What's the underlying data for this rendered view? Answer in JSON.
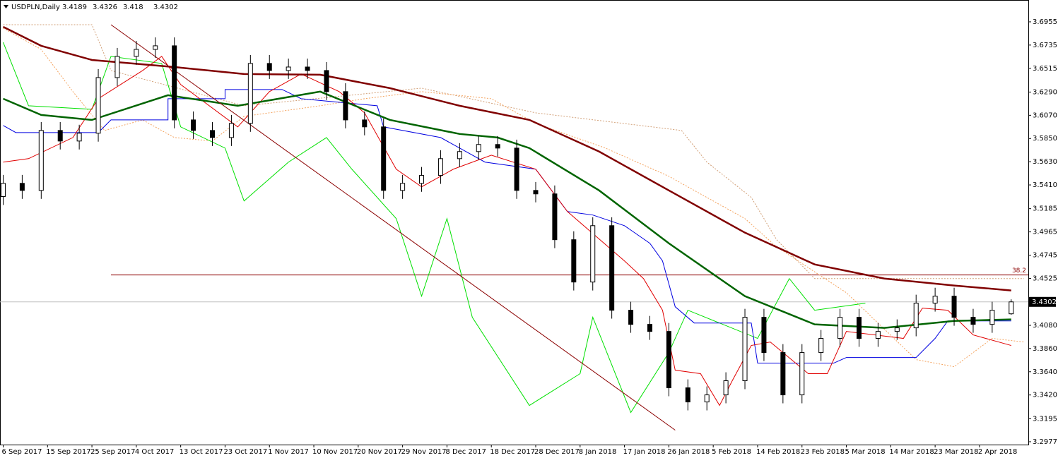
{
  "chart_data": {
    "type": "candlestick",
    "symbol": "USDPLN,Daily",
    "x": [
      0,
      3,
      6,
      9,
      12,
      15,
      18,
      21,
      24,
      27,
      30,
      33,
      36,
      39,
      42,
      45,
      48,
      51,
      54,
      57,
      60,
      63,
      66,
      69,
      72,
      75,
      78,
      81,
      84,
      87,
      90,
      93,
      96,
      99,
      102,
      105,
      108,
      111,
      114,
      117,
      120,
      123,
      126,
      129,
      132,
      135,
      138,
      141,
      144,
      147,
      150,
      153,
      156,
      159
    ],
    "open": [
      3.53,
      3.5425,
      3.5358,
      3.5926,
      3.5826,
      3.59,
      3.6427,
      3.6628,
      3.6694,
      3.6728,
      3.6026,
      3.5926,
      3.5859,
      3.5993,
      3.6561,
      3.6494,
      3.6527,
      3.6494,
      3.6294,
      3.6026,
      3.596,
      3.5358,
      3.5425,
      3.55,
      3.5659,
      3.5726,
      3.5793,
      3.5759,
      3.5358,
      3.5325,
      3.4891,
      3.449,
      3.5024,
      3.4223,
      3.4089,
      3.4022,
      3.3488,
      3.3354,
      3.3421,
      3.3555,
      3.4156,
      3.3822,
      3.3421,
      3.3822,
      3.3956,
      3.4156,
      3.3956,
      3.4022,
      3.4056,
      3.429,
      3.4356,
      3.4156,
      3.4089,
      3.4189
    ],
    "high": [
      3.5505,
      3.5505,
      3.6006,
      3.6006,
      3.598,
      3.6507,
      3.6708,
      3.6774,
      3.6808,
      3.6808,
      3.6106,
      3.6006,
      3.6073,
      3.6641,
      3.6641,
      3.6607,
      3.6607,
      3.6574,
      3.6374,
      3.6106,
      3.604,
      3.5505,
      3.558,
      3.5739,
      3.5806,
      3.5873,
      3.5873,
      3.5839,
      3.5438,
      3.5405,
      3.4971,
      3.5104,
      3.5104,
      3.4303,
      3.4169,
      3.4102,
      3.3568,
      3.3501,
      3.3635,
      3.4236,
      3.4236,
      3.3902,
      3.3902,
      3.4036,
      3.4236,
      3.4236,
      3.4102,
      3.4136,
      3.437,
      3.4436,
      3.4436,
      3.4236,
      3.4303,
      3.4326
    ],
    "low": [
      3.522,
      3.5278,
      3.5278,
      3.5746,
      3.5746,
      3.582,
      3.6347,
      3.6548,
      3.6614,
      3.5946,
      3.5846,
      3.5779,
      3.5779,
      3.5913,
      3.6414,
      3.6414,
      3.6414,
      3.6214,
      3.5946,
      3.588,
      3.5278,
      3.5278,
      3.5345,
      3.542,
      3.5579,
      3.5646,
      3.5679,
      3.5278,
      3.5245,
      3.4811,
      3.441,
      3.441,
      3.4143,
      3.4009,
      3.3942,
      3.3408,
      3.3274,
      3.3274,
      3.3341,
      3.3475,
      3.3742,
      3.3341,
      3.3341,
      3.3742,
      3.3876,
      3.3876,
      3.3876,
      3.3942,
      3.3976,
      3.421,
      3.4076,
      3.4009,
      3.4009,
      3.418
    ],
    "close": [
      3.5425,
      3.5358,
      3.5926,
      3.5826,
      3.59,
      3.6427,
      3.6628,
      3.6694,
      3.6728,
      3.6026,
      3.5926,
      3.5859,
      3.5993,
      3.6561,
      3.6494,
      3.6527,
      3.6494,
      3.6294,
      3.6026,
      3.596,
      3.5358,
      3.5425,
      3.55,
      3.5659,
      3.5726,
      3.5793,
      3.5759,
      3.5358,
      3.5325,
      3.4891,
      3.449,
      3.5024,
      3.4223,
      3.4089,
      3.4022,
      3.3488,
      3.3354,
      3.3421,
      3.3555,
      3.4156,
      3.3822,
      3.3421,
      3.3822,
      3.3956,
      3.4156,
      3.3956,
      3.4022,
      3.4056,
      3.429,
      3.4356,
      3.4156,
      3.4089,
      3.4223,
      3.4302
    ],
    "lines": [
      {
        "color": "#d2a078",
        "width": 1,
        "dash": true,
        "x": [
          0,
          14,
          17,
          38,
          66,
          84,
          107,
          111,
          118,
          122,
          128,
          161
        ],
        "values": [
          3.6928,
          3.6928,
          3.6494,
          3.616,
          3.6327,
          3.6093,
          3.5926,
          3.5626,
          3.5292,
          3.4891,
          3.4523,
          3.4523
        ]
      },
      {
        "color": "#f4a460",
        "width": 1,
        "dash": true,
        "x": [
          0,
          6,
          11,
          16,
          22,
          27,
          33,
          38,
          50,
          57,
          66,
          77,
          84,
          95,
          105,
          117,
          122,
          133,
          144,
          150,
          156,
          161
        ],
        "values": [
          3.6895,
          3.6694,
          3.6294,
          3.5926,
          3.6026,
          3.5859,
          3.5826,
          3.606,
          3.616,
          3.6227,
          3.6294,
          3.6227,
          3.5993,
          3.5759,
          3.5492,
          3.5091,
          3.4824,
          3.4389,
          3.3755,
          3.3688,
          3.3956,
          3.3922
        ]
      },
      {
        "color": "#00e000",
        "width": 1,
        "dash": false,
        "x": [
          0,
          4,
          14,
          17,
          25,
          28,
          35,
          38,
          45,
          51,
          55,
          62,
          66,
          70,
          74,
          83,
          91,
          93,
          99,
          105,
          108,
          119,
          124,
          128,
          136
        ],
        "values": [
          3.6761,
          3.616,
          3.6127,
          3.6628,
          3.6561,
          3.596,
          3.5759,
          3.5258,
          3.5626,
          3.5859,
          3.5559,
          3.5091,
          3.4356,
          3.5091,
          3.4156,
          3.3321,
          3.3622,
          3.4156,
          3.3254,
          3.3822,
          3.4223,
          3.3956,
          3.4523,
          3.4223,
          3.429
        ]
      },
      {
        "color": "#0000e0",
        "width": 1,
        "dash": false,
        "x": [
          0,
          2,
          15,
          17,
          26,
          26,
          35,
          35,
          44,
          47,
          59,
          60,
          69,
          72,
          76,
          84,
          89,
          93,
          98,
          102,
          104,
          106,
          109,
          118,
          119,
          131,
          133,
          144,
          147,
          149,
          159
        ],
        "values": [
          3.5973,
          3.5906,
          3.5906,
          3.6026,
          3.6026,
          3.6227,
          3.6227,
          3.6314,
          3.6314,
          3.6227,
          3.616,
          3.596,
          3.5859,
          3.5759,
          3.5626,
          3.5559,
          3.5158,
          3.5125,
          3.5024,
          3.4857,
          3.469,
          3.4256,
          3.4102,
          3.4102,
          3.3722,
          3.3722,
          3.3775,
          3.3775,
          3.3956,
          3.4122,
          3.4122
        ]
      },
      {
        "color": "#e00000",
        "width": 1,
        "dash": false,
        "x": [
          0,
          4,
          11,
          15,
          22,
          25,
          28,
          37,
          42,
          47,
          53,
          57,
          62,
          66,
          71,
          77,
          84,
          89,
          98,
          101,
          104,
          106,
          110,
          113,
          115,
          118,
          121,
          127,
          130,
          133,
          142,
          145,
          149,
          153,
          159
        ],
        "values": [
          3.5626,
          3.5659,
          3.5859,
          3.6227,
          3.6494,
          3.6628,
          3.6361,
          3.596,
          3.6294,
          3.6461,
          3.6294,
          3.6093,
          3.5559,
          3.5392,
          3.5559,
          3.5692,
          3.5559,
          3.5158,
          3.469,
          3.4523,
          3.4223,
          3.3655,
          3.3622,
          3.3321,
          3.3555,
          3.3889,
          3.3922,
          3.3622,
          3.3622,
          3.4022,
          3.3956,
          3.4243,
          3.4223,
          3.3989,
          3.3889
        ]
      },
      {
        "color": "#006400",
        "width": 2.5,
        "dash": false,
        "x": [
          0,
          6,
          14,
          26,
          37,
          50,
          61,
          72,
          78,
          83,
          94,
          105,
          117,
          128,
          139,
          150,
          159
        ],
        "values": [
          3.6227,
          3.6073,
          3.6026,
          3.626,
          3.616,
          3.6294,
          3.6026,
          3.5893,
          3.5859,
          3.5759,
          3.5358,
          3.4857,
          3.4356,
          3.4089,
          3.4056,
          3.4122,
          3.4136
        ]
      },
      {
        "color": "#800000",
        "width": 2.5,
        "dash": false,
        "x": [
          0,
          6,
          14,
          27,
          38,
          50,
          61,
          72,
          83,
          94,
          105,
          117,
          128,
          139,
          150,
          159
        ],
        "values": [
          3.6908,
          3.6728,
          3.6594,
          3.6527,
          3.6461,
          3.6454,
          3.6327,
          3.616,
          3.6026,
          3.5726,
          3.5358,
          3.4958,
          3.4657,
          3.4523,
          3.4457,
          3.441
        ]
      }
    ],
    "trendline": {
      "color": "#8b0000",
      "x": [
        17,
        106
      ],
      "values": [
        3.6928,
        3.3087
      ]
    },
    "fib": {
      "label": "38.2",
      "value": 3.4557,
      "x_start": 17,
      "color": "#8b0000"
    },
    "xlim": [
      -0.5,
      161.7
    ],
    "ylim": [
      3.295,
      3.7162
    ],
    "yticks": [
      3.6955,
      3.6735,
      3.6515,
      {
        "value": 3.629,
        "label": "3.6290"
      },
      {
        "value": 3.607,
        "label": "3.6070"
      },
      {
        "value": 3.585,
        "label": "3.5850"
      },
      {
        "value": 3.563,
        "label": "3.5630"
      },
      {
        "value": 3.541,
        "label": "3.5410"
      },
      3.5185,
      3.4965,
      3.4745,
      3.4525,
      {
        "value": 3.408,
        "label": "3.4080"
      },
      {
        "value": 3.386,
        "label": "3.3860"
      },
      {
        "value": 3.364,
        "label": "3.3640"
      },
      {
        "value": 3.342,
        "label": "3.3420"
      },
      3.3195,
      3.2977
    ],
    "xticks": [
      {
        "value": 0,
        "label": "6 Sep 2017"
      },
      {
        "value": 7,
        "label": "15 Sep 2017"
      },
      {
        "value": 14,
        "label": "25 Sep 2017"
      },
      {
        "value": 21,
        "label": "4 Oct 2017"
      },
      {
        "value": 28,
        "label": "13 Oct 2017"
      },
      {
        "value": 35,
        "label": "23 Oct 2017"
      },
      {
        "value": 42,
        "label": "1 Nov 2017"
      },
      {
        "value": 49,
        "label": "10 Nov 2017"
      },
      {
        "value": 56,
        "label": "20 Nov 2017"
      },
      {
        "value": 63,
        "label": "29 Nov 2017"
      },
      {
        "value": 70,
        "label": "8 Dec 2017"
      },
      {
        "value": 77,
        "label": "18 Dec 2017"
      },
      {
        "value": 84,
        "label": "28 Dec 2017"
      },
      {
        "value": 91,
        "label": "8 Jan 2018"
      },
      {
        "value": 98,
        "label": "17 Jan 2018"
      },
      {
        "value": 105,
        "label": "26 Jan 2018"
      },
      {
        "value": 112,
        "label": "5 Feb 2018"
      },
      {
        "value": 119,
        "label": "14 Feb 2018"
      },
      {
        "value": 126,
        "label": "23 Feb 2018"
      },
      {
        "value": 133,
        "label": "5 Mar 2018"
      },
      {
        "value": 140,
        "label": "14 Mar 2018"
      },
      {
        "value": 147,
        "label": "23 Mar 2018"
      },
      {
        "value": 154,
        "label": "2 Apr 2018"
      }
    ]
  }
}
